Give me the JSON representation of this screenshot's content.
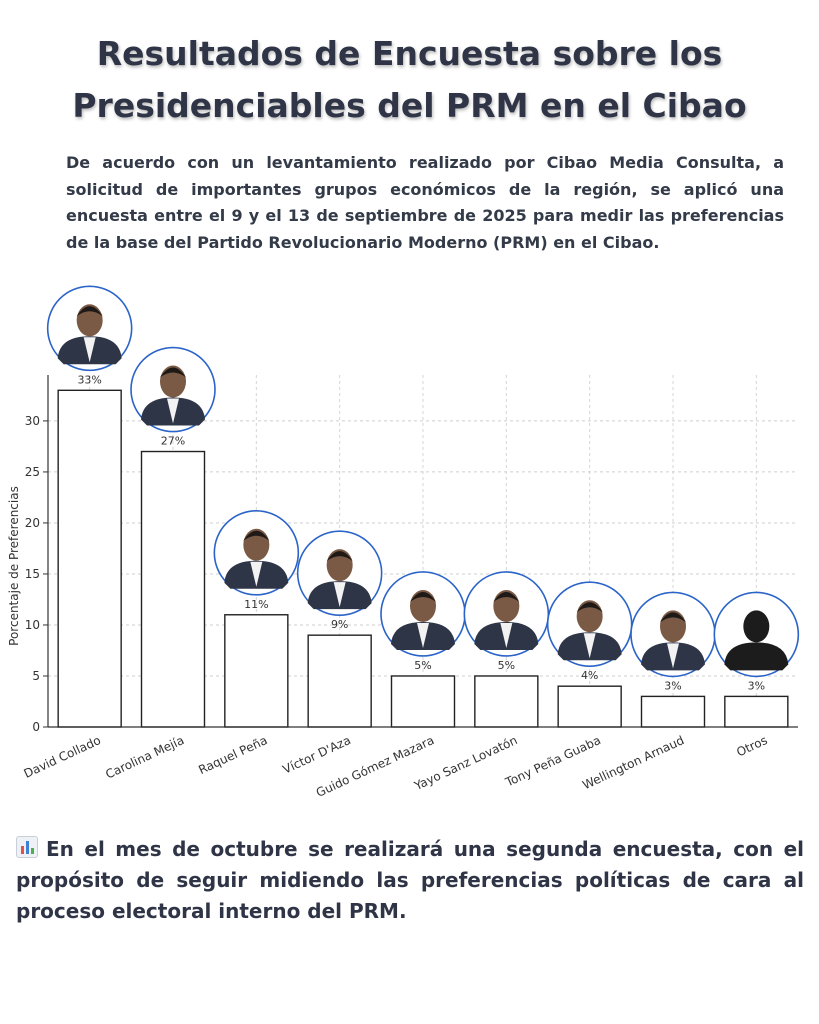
{
  "header": {
    "title_line1": "Resultados de Encuesta sobre los",
    "title_line2": "Presidenciables del PRM en el Cibao",
    "intro": "De acuerdo con un levantamiento realizado por Cibao Media Consulta, a solicitud de importantes grupos económicos de la región, se aplicó una encuesta entre el 9 y el 13 de septiembre de 2025 para medir las preferencias de la base del Partido Revolucionario Moderno (PRM) en el Cibao."
  },
  "footer": {
    "icon": "bar-chart-icon",
    "text": "En el mes de octubre se realizará una segunda encuesta, con el propósito de seguir midiendo las preferencias políticas de cara al proceso electoral interno del PRM."
  },
  "chart_data": {
    "type": "bar",
    "categories": [
      "David Collado",
      "Carolina Mejía",
      "Raquel Peña",
      "Víctor D'Aza",
      "Guido Gómez Mazara",
      "Yayo Sanz Lovatón",
      "Tony Peña Guaba",
      "Wellington Arnaud",
      "Otros"
    ],
    "values": [
      33,
      27,
      11,
      9,
      5,
      5,
      4,
      3,
      3
    ],
    "data_labels": [
      "33%",
      "27%",
      "11%",
      "9%",
      "5%",
      "5%",
      "4%",
      "3%",
      "3%"
    ],
    "title": "",
    "xlabel": "",
    "ylabel": "Porcentaje de Preferencias",
    "ylim": [
      0,
      34.5
    ],
    "yticks": [
      0,
      5,
      10,
      15,
      20,
      25,
      30
    ],
    "grid": true,
    "bar_fill": "#ffffff",
    "bar_stroke": "#222222",
    "avatar_ring": "#2b64c8"
  }
}
